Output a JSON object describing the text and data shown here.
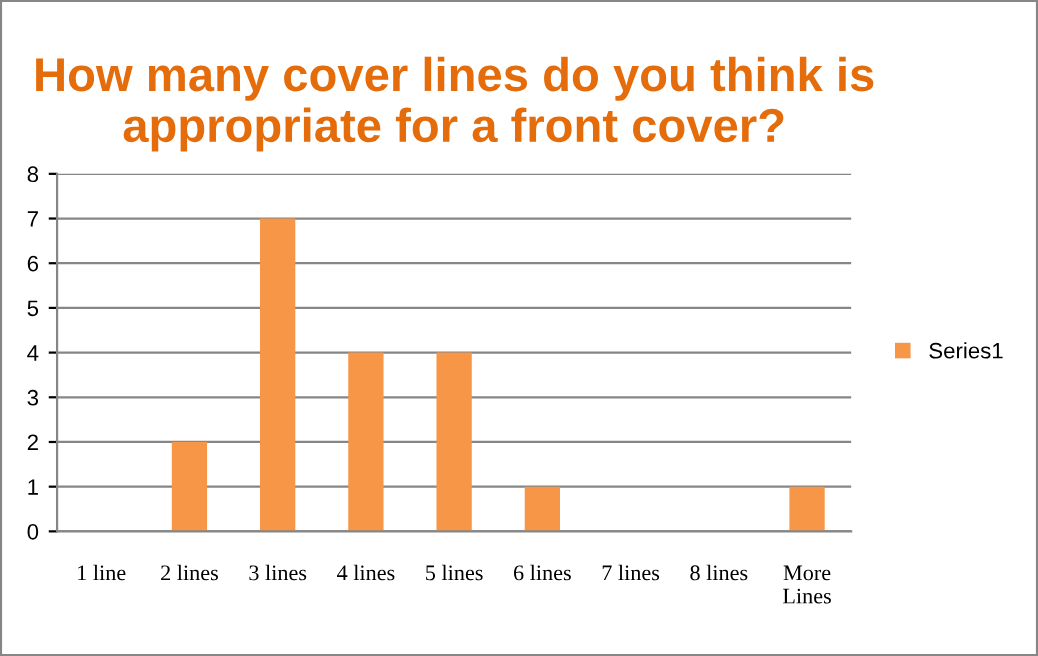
{
  "chart_data": {
    "type": "bar",
    "title": "How many cover lines do you think is appropriate for a front cover?",
    "categories": [
      "1 line",
      "2 lines",
      "3 lines",
      "4 lines",
      "5 lines",
      "6 lines",
      "7 lines",
      "8 lines",
      "More\nLines"
    ],
    "series": [
      {
        "name": "Series1",
        "color": "#f79646",
        "values": [
          0,
          2,
          7,
          4,
          4,
          1,
          0,
          0,
          1
        ]
      }
    ],
    "ylim": [
      0,
      8
    ],
    "yticks": [
      0,
      1,
      2,
      3,
      4,
      5,
      6,
      7,
      8
    ],
    "grid": "y",
    "legend": "right"
  }
}
